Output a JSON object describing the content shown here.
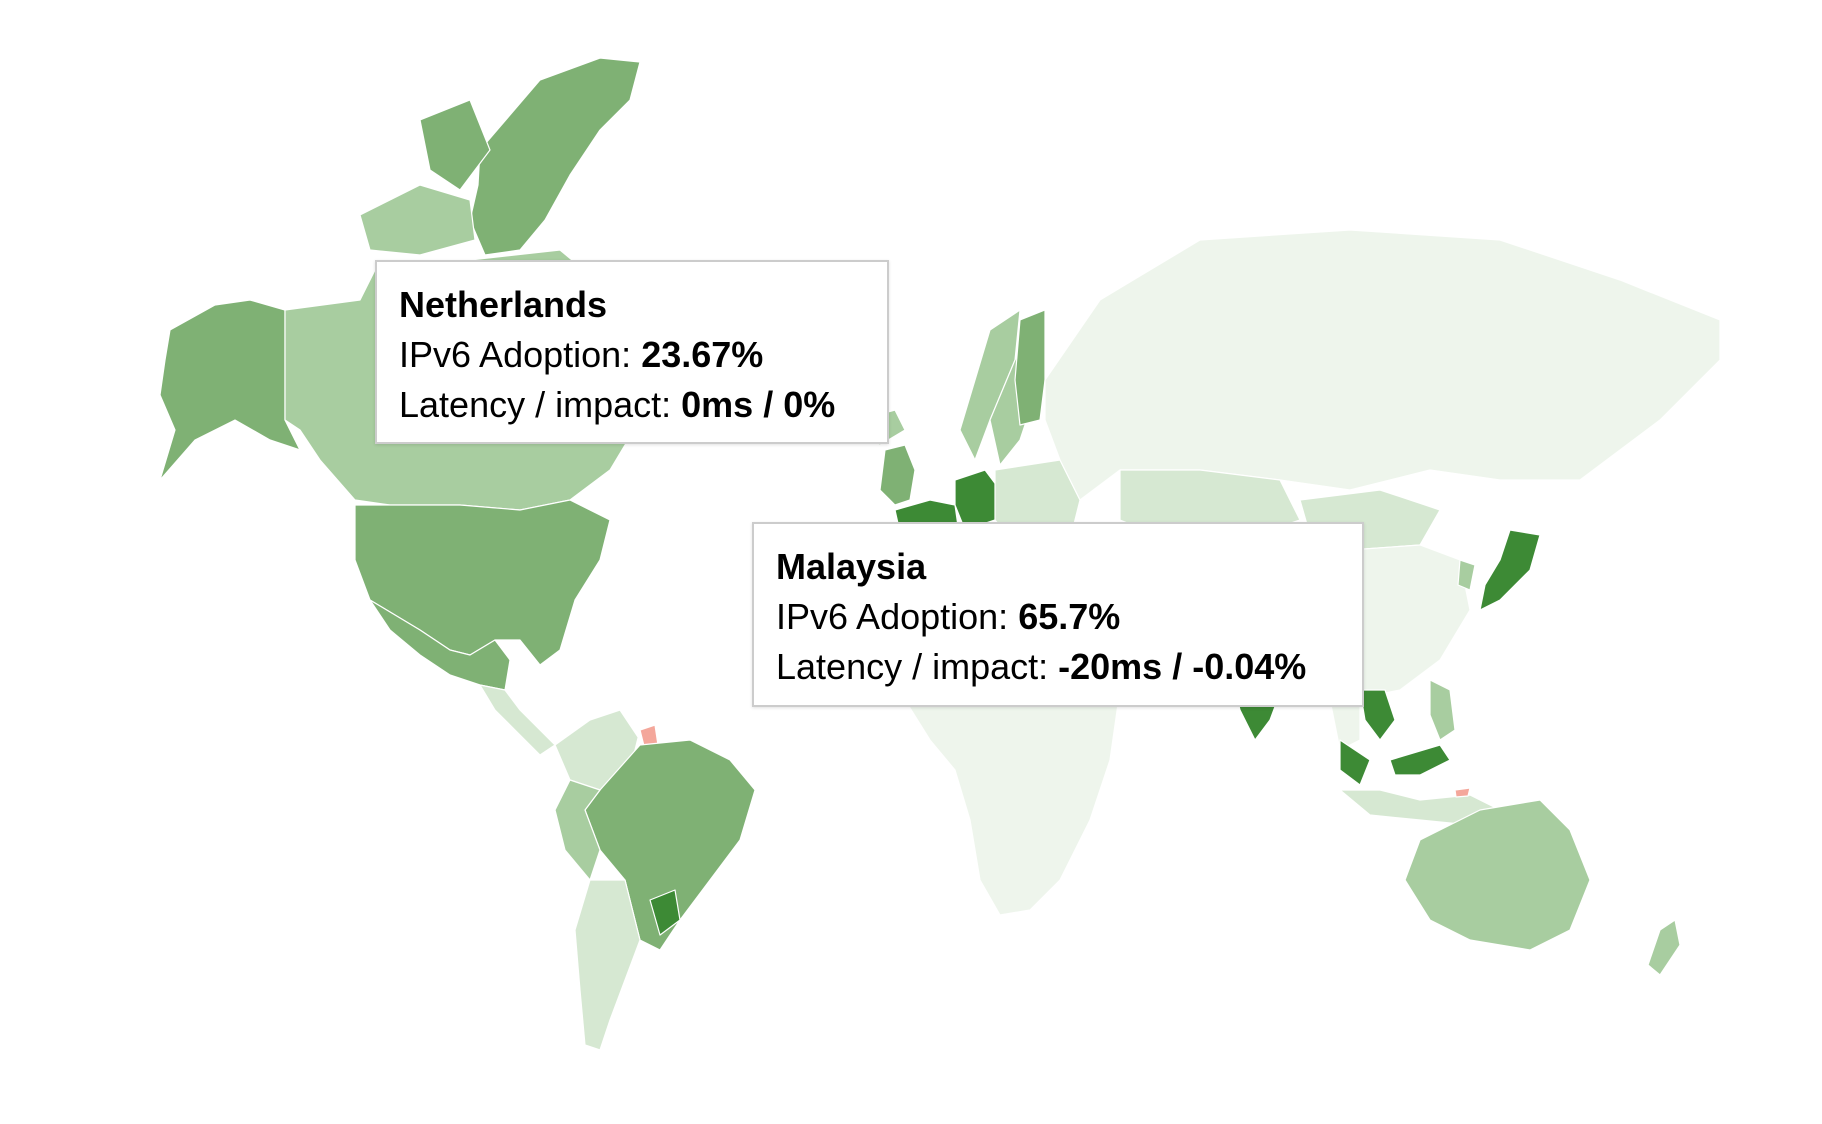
{
  "map": {
    "colors": {
      "no_data": "#ffffff",
      "very_low": "#eef5ec",
      "low": "#d6e8d2",
      "medium_low": "#a8cda0",
      "medium": "#7fb174",
      "high": "#5c9e51",
      "very_high": "#3d8a35",
      "negative": "#f4a79b"
    },
    "countries": [
      {
        "name": "Greenland",
        "level": "medium"
      },
      {
        "name": "Canada",
        "level": "medium_low"
      },
      {
        "name": "Alaska",
        "level": "medium"
      },
      {
        "name": "United States",
        "level": "medium"
      },
      {
        "name": "Mexico",
        "level": "medium"
      },
      {
        "name": "Brazil",
        "level": "medium"
      },
      {
        "name": "Germany",
        "level": "very_high"
      },
      {
        "name": "France",
        "level": "very_high"
      },
      {
        "name": "United Kingdom",
        "level": "medium"
      },
      {
        "name": "Finland",
        "level": "medium"
      },
      {
        "name": "Sweden",
        "level": "medium_low"
      },
      {
        "name": "Norway",
        "level": "medium_low"
      },
      {
        "name": "Russia",
        "level": "very_low"
      },
      {
        "name": "China",
        "level": "very_low"
      },
      {
        "name": "Mongolia",
        "level": "low"
      },
      {
        "name": "Japan",
        "level": "very_high"
      },
      {
        "name": "India",
        "level": "very_high"
      },
      {
        "name": "Malaysia",
        "level": "very_high"
      },
      {
        "name": "Vietnam",
        "level": "very_high"
      },
      {
        "name": "Australia",
        "level": "medium_low"
      },
      {
        "name": "New Zealand",
        "level": "medium_low"
      },
      {
        "name": "Africa",
        "level": "very_low"
      },
      {
        "name": "Guyana",
        "level": "negative"
      },
      {
        "name": "Timor-Leste",
        "level": "negative"
      }
    ]
  },
  "tooltips": [
    {
      "country": "Netherlands",
      "adoption_label": "IPv6 Adoption: ",
      "adoption_value": "23.67%",
      "latency_label": "Latency / impact: ",
      "latency_value": "0ms / 0%"
    },
    {
      "country": "Malaysia",
      "adoption_label": "IPv6 Adoption: ",
      "adoption_value": "65.7%",
      "latency_label": "Latency / impact: ",
      "latency_value": "-20ms / -0.04%"
    }
  ]
}
